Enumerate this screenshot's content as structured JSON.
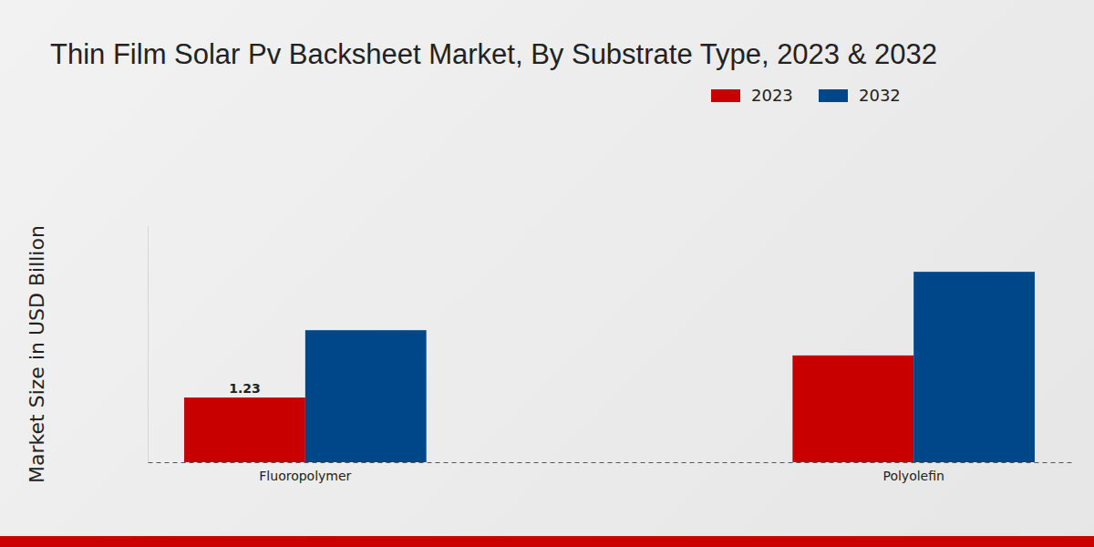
{
  "chart_data": {
    "type": "bar",
    "title": "Thin Film Solar Pv Backsheet Market, By Substrate Type, 2023 & 2032",
    "y_label": "Market Size in USD Billion",
    "categories": [
      "Fluoropolymer",
      "Polyolefin"
    ],
    "series": [
      {
        "name": "2023",
        "color": "#c80000",
        "values": [
          1.23,
          2.03
        ],
        "value_labels": [
          "1.23",
          null
        ]
      },
      {
        "name": "2032",
        "color": "#00478a",
        "values": [
          2.51,
          3.62
        ]
      }
    ],
    "ylim": [
      0,
      4.5
    ],
    "legend": "top",
    "grid": false,
    "tick_labels": "x"
  }
}
